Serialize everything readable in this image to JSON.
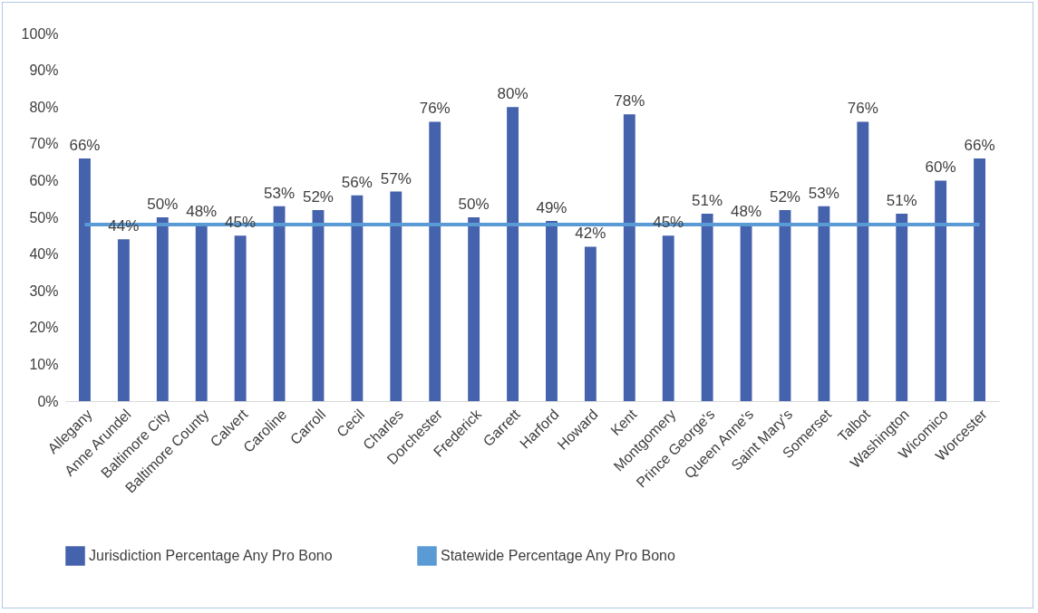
{
  "chart_data": {
    "type": "bar",
    "categories": [
      "Allegany",
      "Anne Arundel",
      "Baltimore City",
      "Baltimore County",
      "Calvert",
      "Caroline",
      "Carroll",
      "Cecil",
      "Charles",
      "Dorchester",
      "Frederick",
      "Garrett",
      "Harford",
      "Howard",
      "Kent",
      "Montgomery",
      "Prince George's",
      "Queen Anne's",
      "Saint Mary's",
      "Somerset",
      "Talbot",
      "Washington",
      "Wicomico",
      "Worcester"
    ],
    "series": [
      {
        "name": "Jurisdiction Percentage Any Pro Bono",
        "color": "#4562ad",
        "values": [
          66,
          44,
          50,
          48,
          45,
          53,
          52,
          56,
          57,
          76,
          50,
          80,
          49,
          42,
          78,
          45,
          51,
          48,
          52,
          53,
          76,
          51,
          60,
          66
        ],
        "value_labels": [
          "66%",
          "44%",
          "50%",
          "48%",
          "45%",
          "53%",
          "52%",
          "56%",
          "57%",
          "76%",
          "50%",
          "80%",
          "49%",
          "42%",
          "78%",
          "45%",
          "51%",
          "48%",
          "52%",
          "53%",
          "76%",
          "51%",
          "60%",
          "66%"
        ]
      },
      {
        "name": "Statewide Percentage Any Pro Bono",
        "type": "line",
        "color": "#5b9bd5",
        "values": [
          48,
          48,
          48,
          48,
          48,
          48,
          48,
          48,
          48,
          48,
          48,
          48,
          48,
          48,
          48,
          48,
          48,
          48,
          48,
          48,
          48,
          48,
          48,
          48
        ]
      }
    ],
    "ylim": [
      0,
      100
    ],
    "yticks": [
      {
        "value": 0,
        "label": "0%"
      },
      {
        "value": 10,
        "label": "10%"
      },
      {
        "value": 20,
        "label": "20%"
      },
      {
        "value": 30,
        "label": "30%"
      },
      {
        "value": 40,
        "label": "40%"
      },
      {
        "value": 50,
        "label": "50%"
      },
      {
        "value": 60,
        "label": "60%"
      },
      {
        "value": 70,
        "label": "70%"
      },
      {
        "value": 80,
        "label": "80%"
      },
      {
        "value": 90,
        "label": "90%"
      },
      {
        "value": 100,
        "label": "100%"
      }
    ],
    "legend": "bottom"
  }
}
